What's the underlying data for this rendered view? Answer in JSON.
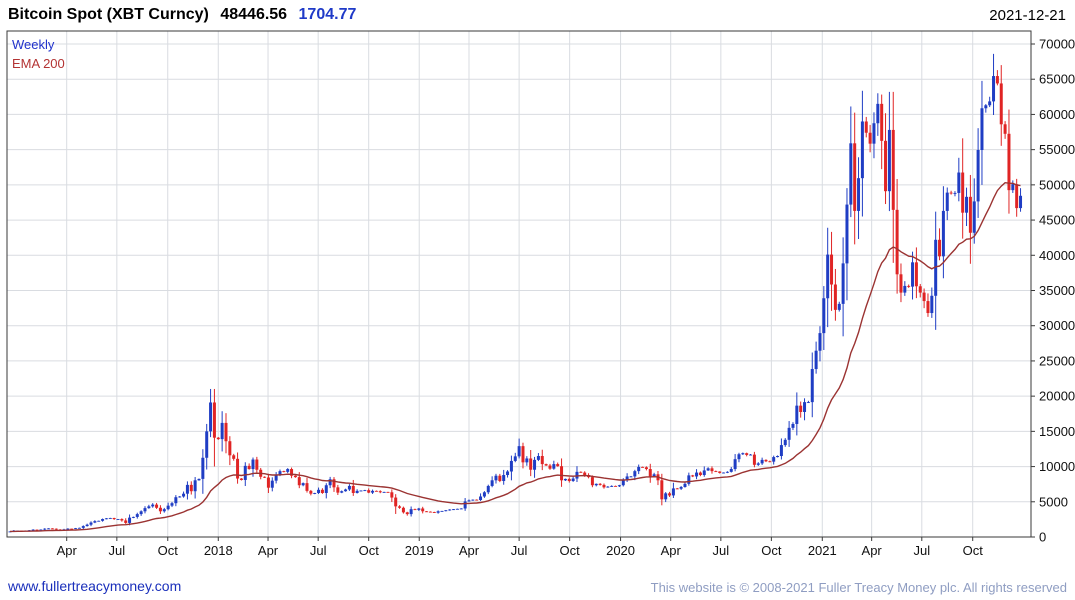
{
  "header": {
    "title": "Bitcoin Spot (XBT Curncy)",
    "last_price": "48446.56",
    "change": "1704.77",
    "date": "2021-12-21"
  },
  "legend": {
    "series_label": "Weekly",
    "overlay_label": "EMA 200"
  },
  "footer": {
    "link": "www.fullertreacymoney.com",
    "copyright": "This website is © 2008-2021 Fuller Treacy Money plc. All rights reserved"
  },
  "colors": {
    "up_candle": "#1f3dc4",
    "down_candle": "#e02424",
    "ema_line": "#9b3332",
    "grid": "#d9dce1",
    "axis": "#3a3a3a",
    "tick_text": "#111111",
    "change_text": "#1f3ac8",
    "legend_weekly": "#2233cc",
    "legend_ema": "#b33333",
    "link": "#1a2fbb",
    "copyright_text": "#8f9dc2"
  },
  "chart_data": {
    "type": "candlestick",
    "title": "Bitcoin Spot (XBT Curncy)",
    "interval": "Weekly",
    "overlay": "EMA 200",
    "last_close": 48446.56,
    "change": 1704.77,
    "ylim": [
      0,
      70000
    ],
    "y_tick_step": 5000,
    "grid": true,
    "legend_position": "top-left",
    "ema_period_weeks": 29,
    "x_ticks": [
      {
        "label": "Apr",
        "week": 14.7
      },
      {
        "label": "Jul",
        "week": 27.7
      },
      {
        "label": "Oct",
        "week": 40.9
      },
      {
        "label": "2018",
        "week": 54.0
      },
      {
        "label": "Apr",
        "week": 66.9
      },
      {
        "label": "Jul",
        "week": 79.9
      },
      {
        "label": "Oct",
        "week": 93.0
      },
      {
        "label": "2019",
        "week": 106.1
      },
      {
        "label": "Apr",
        "week": 119.0
      },
      {
        "label": "Jul",
        "week": 132.0
      },
      {
        "label": "Oct",
        "week": 145.1
      },
      {
        "label": "2020",
        "week": 158.3
      },
      {
        "label": "Apr",
        "week": 171.3
      },
      {
        "label": "Jul",
        "week": 184.3
      },
      {
        "label": "Oct",
        "week": 197.4
      },
      {
        "label": "2021",
        "week": 210.6
      },
      {
        "label": "Apr",
        "week": 223.4
      },
      {
        "label": "Jul",
        "week": 236.4
      },
      {
        "label": "Oct",
        "week": 249.6
      }
    ],
    "weekly_closes": [
      790,
      900,
      905,
      895,
      920,
      965,
      1050,
      1005,
      1060,
      1180,
      1220,
      1180,
      1050,
      970,
      1080,
      1190,
      1180,
      1250,
      1300,
      1550,
      1750,
      2050,
      2250,
      2300,
      2550,
      2650,
      2700,
      2550,
      2550,
      2350,
      2000,
      2750,
      2850,
      3250,
      3650,
      4100,
      4350,
      4600,
      4150,
      3650,
      3950,
      4450,
      4800,
      5650,
      5750,
      6150,
      7400,
      6500,
      8050,
      8250,
      11250,
      15000,
      19100,
      14100,
      13900,
      16200,
      13600,
      11600,
      11100,
      8300,
      8100,
      10100,
      9650,
      11000,
      9550,
      8550,
      8450,
      7000,
      8000,
      8850,
      9350,
      9250,
      9650,
      8700,
      8500,
      7350,
      7650,
      6550,
      6150,
      6250,
      6700,
      6250,
      7350,
      8200,
      7050,
      6300,
      6500,
      6750,
      7250,
      6250,
      6550,
      6600,
      6650,
      6300,
      6550,
      6500,
      6350,
      6400,
      6350,
      5600,
      4350,
      4150,
      3500,
      3250,
      3950,
      3850,
      4050,
      3650,
      3600,
      3550,
      3450,
      3650,
      3700,
      3800,
      3900,
      3950,
      4000,
      4050,
      5050,
      5200,
      5300,
      5250,
      5750,
      6350,
      7250,
      8050,
      8700,
      7950,
      8800,
      9300,
      10800,
      11450,
      12900,
      10600,
      11150,
      9550,
      10950,
      11500,
      10350,
      10150,
      9700,
      10350,
      10050,
      8050,
      8250,
      7950,
      8300,
      9250,
      9150,
      8800,
      8500,
      7350,
      7550,
      7400,
      7050,
      7150,
      7250,
      7200,
      7350,
      8050,
      8600,
      8600,
      9350,
      9950,
      9900,
      9650,
      8600,
      8900,
      8050,
      5350,
      6200,
      5900,
      6900,
      6850,
      7100,
      7550,
      8750,
      8600,
      9150,
      8800,
      9450,
      9750,
      9350,
      9300,
      9100,
      9150,
      9250,
      9650,
      11050,
      11750,
      11900,
      11650,
      11700,
      10250,
      10450,
      10950,
      10750,
      10700,
      11350,
      11500,
      13050,
      13800,
      15500,
      16050,
      18650,
      17750,
      19150,
      19150,
      23850,
      26450,
      28950,
      33900,
      40100,
      35850,
      32250,
      33100,
      38850,
      47200,
      55900,
      46300,
      50950,
      59000,
      57400,
      55850,
      58750,
      61500,
      56250,
      49100,
      57800,
      46450,
      37300,
      34700,
      35650,
      35550,
      39000,
      35600,
      34700,
      33500,
      31800,
      34250,
      42200,
      39850,
      46300,
      48900,
      48850,
      48850,
      51750,
      46050,
      48300,
      43200,
      47650,
      54950,
      60875,
      61300,
      61850,
      65450,
      64400,
      58600,
      57250,
      49250,
      50100,
      46700,
      48446.56
    ]
  }
}
